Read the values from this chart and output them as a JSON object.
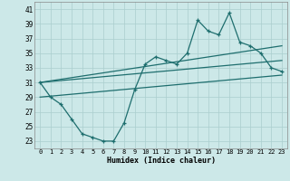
{
  "xlabel": "Humidex (Indice chaleur)",
  "ylabel": "",
  "xlim": [
    -0.5,
    23.5
  ],
  "ylim": [
    22,
    42
  ],
  "yticks": [
    23,
    25,
    27,
    29,
    31,
    33,
    35,
    37,
    39,
    41
  ],
  "xticks": [
    0,
    1,
    2,
    3,
    4,
    5,
    6,
    7,
    8,
    9,
    10,
    11,
    12,
    13,
    14,
    15,
    16,
    17,
    18,
    19,
    20,
    21,
    22,
    23
  ],
  "background_color": "#cce8e8",
  "line_color": "#1e6e6e",
  "grid_color": "#aacece",
  "main_curve_x": [
    0,
    1,
    2,
    3,
    4,
    5,
    6,
    7,
    8,
    9,
    10,
    11,
    12,
    13,
    14,
    15,
    16,
    17,
    18,
    19,
    20,
    21,
    22,
    23
  ],
  "main_curve_y": [
    31,
    29,
    28,
    26,
    24,
    23.5,
    23,
    23,
    25.5,
    30,
    33.5,
    34.5,
    34,
    33.5,
    35,
    39.5,
    38,
    37.5,
    40.5,
    36.5,
    36,
    35,
    33,
    32.5
  ],
  "trend_line1_x": [
    0,
    23
  ],
  "trend_line1_y": [
    31,
    36
  ],
  "trend_line2_x": [
    0,
    23
  ],
  "trend_line2_y": [
    31,
    34
  ],
  "trend_line3_x": [
    0,
    23
  ],
  "trend_line3_y": [
    29,
    32
  ]
}
